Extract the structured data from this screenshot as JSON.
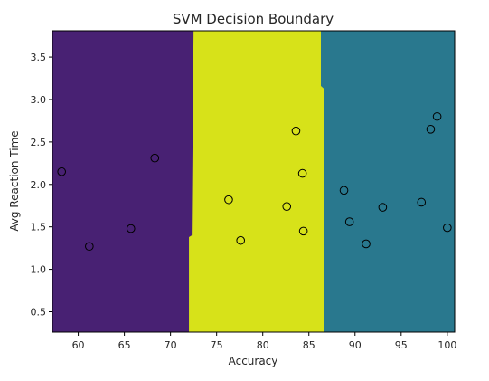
{
  "chart_data": {
    "type": "scatter",
    "title": "SVM Decision Boundary",
    "xlabel": "Accuracy",
    "ylabel": "Avg Reaction Time",
    "xlim": [
      57.2,
      100.8
    ],
    "ylim": [
      0.26,
      3.81
    ],
    "xticks": [
      60,
      65,
      70,
      75,
      80,
      85,
      90,
      95,
      100
    ],
    "yticks": [
      0.5,
      1.0,
      1.5,
      2.0,
      2.5,
      3.0,
      3.5
    ],
    "xtick_labels": [
      "60",
      "65",
      "70",
      "75",
      "80",
      "85",
      "90",
      "95",
      "100"
    ],
    "ytick_labels": [
      "0.5",
      "1.0",
      "1.5",
      "2.0",
      "2.5",
      "3.0",
      "3.5"
    ],
    "regions": [
      {
        "class": 0,
        "color": "#482173",
        "boundary": [
          [
            72.0,
            0.26
          ],
          [
            72.0,
            1.38
          ],
          [
            72.3,
            1.4
          ],
          [
            72.5,
            3.81
          ]
        ]
      },
      {
        "class": 1,
        "color": "#d7e219"
      },
      {
        "class": 2,
        "color": "#29788e",
        "boundary": [
          [
            86.6,
            0.26
          ],
          [
            86.6,
            3.13
          ],
          [
            86.3,
            3.16
          ],
          [
            86.3,
            3.81
          ]
        ]
      }
    ],
    "points": [
      {
        "x": 58.2,
        "y": 2.15,
        "class": 0
      },
      {
        "x": 61.2,
        "y": 1.27,
        "class": 0
      },
      {
        "x": 65.7,
        "y": 1.48,
        "class": 0
      },
      {
        "x": 68.3,
        "y": 2.31,
        "class": 0
      },
      {
        "x": 76.3,
        "y": 1.82,
        "class": 1
      },
      {
        "x": 77.6,
        "y": 1.34,
        "class": 1
      },
      {
        "x": 82.6,
        "y": 1.74,
        "class": 1
      },
      {
        "x": 83.6,
        "y": 2.63,
        "class": 1
      },
      {
        "x": 84.3,
        "y": 2.13,
        "class": 1
      },
      {
        "x": 84.4,
        "y": 1.45,
        "class": 1
      },
      {
        "x": 88.8,
        "y": 1.93,
        "class": 2
      },
      {
        "x": 89.4,
        "y": 1.56,
        "class": 2
      },
      {
        "x": 91.2,
        "y": 1.3,
        "class": 2
      },
      {
        "x": 93.0,
        "y": 1.73,
        "class": 2
      },
      {
        "x": 97.2,
        "y": 1.79,
        "class": 2
      },
      {
        "x": 98.2,
        "y": 2.65,
        "class": 2
      },
      {
        "x": 98.9,
        "y": 2.8,
        "class": 2
      },
      {
        "x": 100.0,
        "y": 1.49,
        "class": 2
      }
    ]
  }
}
